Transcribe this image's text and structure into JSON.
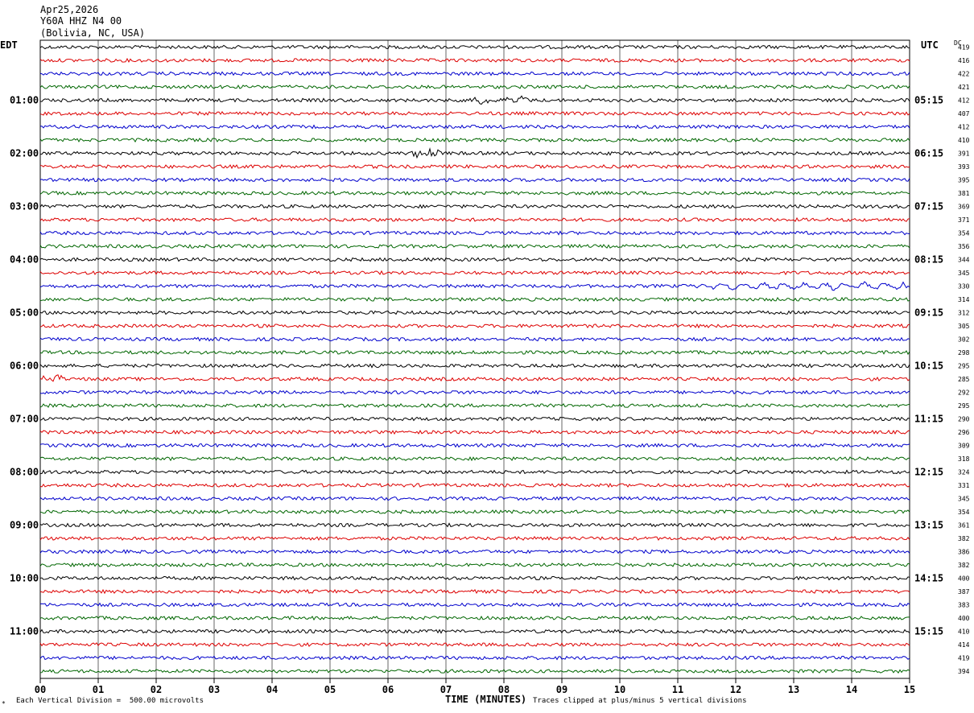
{
  "header": {
    "date": "Apr25,2026",
    "station": "Y60A HHZ N4 00",
    "location": "(Bolivia, NC, USA)"
  },
  "left_tz": "EDT",
  "right_tz": "UTC",
  "dc_label": "DC",
  "footer": {
    "scale_note": "Each Vertical Division =  500.00 microvolts",
    "clip_note": "Traces clipped at plus/minus 5 vertical divisions",
    "star": "*"
  },
  "chart_data": {
    "type": "line",
    "xlabel": "TIME (MINUTES)",
    "xlim": [
      0,
      15
    ],
    "x_ticks": [
      "00",
      "01",
      "02",
      "03",
      "04",
      "05",
      "06",
      "07",
      "08",
      "09",
      "10",
      "11",
      "12",
      "13",
      "14",
      "15"
    ],
    "trace_colors": [
      "#000000",
      "#dd0000",
      "#0000cc",
      "#006600"
    ],
    "hours_left": [
      "01:00",
      "02:00",
      "03:00",
      "04:00",
      "05:00",
      "06:00",
      "07:00",
      "08:00",
      "09:00",
      "10:00",
      "11:00"
    ],
    "hours_right": [
      "05:15",
      "06:15",
      "07:15",
      "08:15",
      "09:15",
      "10:15",
      "11:15",
      "12:15",
      "13:15",
      "14:15",
      "15:15"
    ],
    "dc_values": [
      419,
      416,
      422,
      421,
      412,
      407,
      412,
      410,
      391,
      393,
      395,
      381,
      369,
      371,
      354,
      356,
      344,
      345,
      330,
      314,
      312,
      305,
      302,
      298,
      295,
      285,
      292,
      295,
      290,
      296,
      309,
      318,
      324,
      331,
      345,
      354,
      361,
      382,
      386,
      382,
      400,
      387,
      383,
      400,
      410,
      414,
      419,
      394
    ],
    "events": [
      {
        "trace": 4,
        "x_min": 7.5,
        "x_max": 8.4,
        "amp": 4
      },
      {
        "trace": 8,
        "x_min": 6.4,
        "x_max": 6.9,
        "amp": 5
      },
      {
        "trace": 16,
        "x_min": 6.0,
        "x_max": 6.3,
        "amp": 2
      },
      {
        "trace": 18,
        "x_min": 11.3,
        "x_max": 14.9,
        "amp": 4
      },
      {
        "trace": 25,
        "x_min": 0.0,
        "x_max": 0.4,
        "amp": 5
      }
    ]
  }
}
